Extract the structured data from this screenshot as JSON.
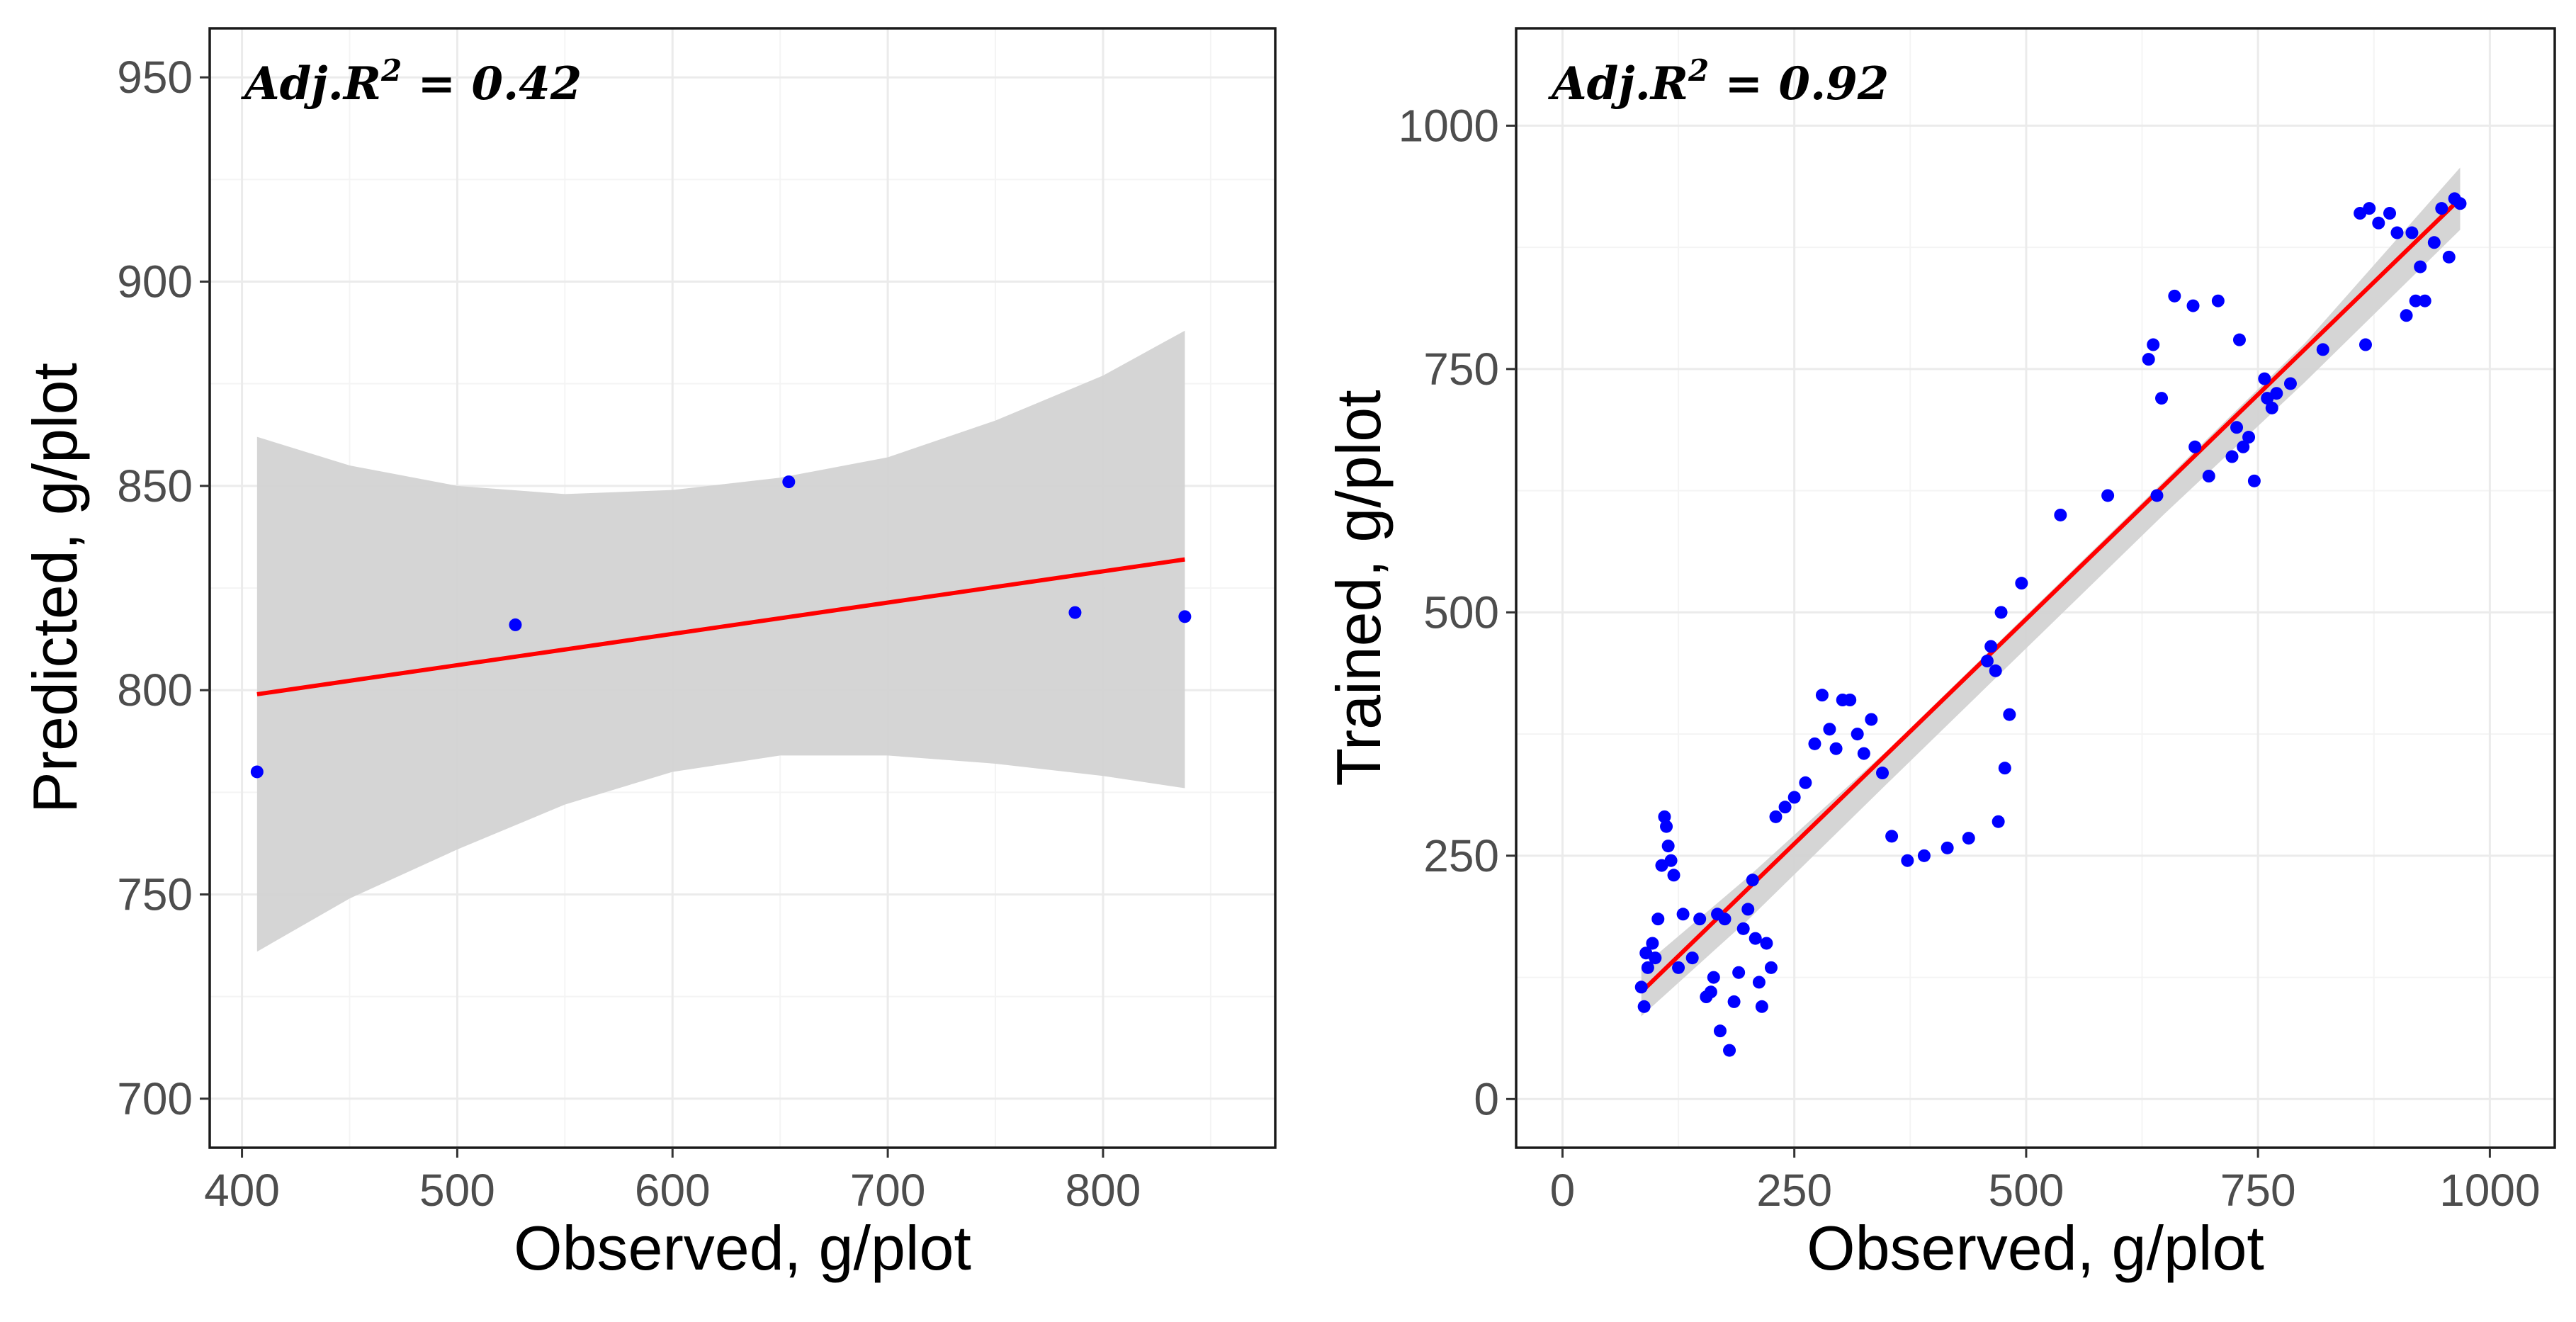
{
  "colors": {
    "points": "#0000ff",
    "fit_line": "#ff0000",
    "confidence_band": "#d3d3d3",
    "grid": "#ebebeb",
    "border": "#1a1a1a",
    "tick_text": "#4d4d4d"
  },
  "chart_data": [
    {
      "id": "left",
      "type": "scatter",
      "annotation": {
        "prefix": "Adj.",
        "r": "R",
        "sup": "2",
        "eq": " = ",
        "value": "0.42"
      },
      "xlabel": "Observed, g/plot",
      "ylabel": "Predicted, g/plot",
      "xlim": [
        385,
        880
      ],
      "ylim": [
        688,
        962
      ],
      "xticks": [
        400,
        500,
        600,
        700,
        800
      ],
      "yticks": [
        700,
        750,
        800,
        850,
        900,
        950
      ],
      "xminor": [
        450,
        550,
        650,
        750,
        850
      ],
      "yminor": [
        725,
        775,
        825,
        875,
        925
      ],
      "points": {
        "x": [
          407,
          527,
          654,
          787,
          838
        ],
        "y": [
          780,
          816,
          851,
          819,
          818
        ]
      },
      "fit": {
        "x": [
          407,
          838
        ],
        "y": [
          799,
          832
        ]
      },
      "band": {
        "x": [
          407,
          450,
          500,
          550,
          600,
          650,
          700,
          750,
          800,
          838
        ],
        "upper": [
          862,
          855,
          850,
          848,
          849,
          852,
          857,
          866,
          877,
          888
        ],
        "lower": [
          736,
          749,
          761,
          772,
          780,
          784,
          784,
          782,
          779,
          776
        ]
      }
    },
    {
      "id": "right",
      "type": "scatter",
      "annotation": {
        "prefix": "Adj.",
        "r": "R",
        "sup": "2",
        "eq": " = ",
        "value": "0.92"
      },
      "xlabel": "Observed, g/plot",
      "ylabel": "Trained, g/plot",
      "xlim": [
        -50,
        1070
      ],
      "ylim": [
        -50,
        1100
      ],
      "xticks": [
        0,
        250,
        500,
        750,
        1000
      ],
      "yticks": [
        0,
        250,
        500,
        750,
        1000
      ],
      "xminor": [
        125,
        375,
        625,
        875
      ],
      "yminor": [
        125,
        375,
        625,
        875
      ],
      "points": {
        "x": [
          85,
          88,
          90,
          92,
          97,
          100,
          103,
          107,
          110,
          112,
          114,
          117,
          120,
          125,
          130,
          140,
          148,
          155,
          160,
          163,
          167,
          170,
          175,
          180,
          185,
          190,
          195,
          200,
          205,
          208,
          212,
          215,
          220,
          225,
          230,
          240,
          250,
          262,
          272,
          280,
          288,
          295,
          302,
          310,
          318,
          325,
          333,
          345,
          355,
          372,
          390,
          415,
          438,
          458,
          462,
          467,
          470,
          473,
          477,
          482,
          495,
          537,
          588,
          632,
          637,
          641,
          646,
          660,
          680,
          682,
          697,
          707,
          722,
          727,
          730,
          734,
          740,
          746,
          757,
          760,
          765,
          770,
          785,
          820,
          860,
          866,
          870,
          880,
          892,
          900,
          910,
          916,
          920,
          925,
          930,
          940,
          948,
          956,
          962,
          968
        ],
        "y": [
          115,
          95,
          150,
          135,
          160,
          145,
          185,
          240,
          290,
          280,
          260,
          245,
          230,
          135,
          190,
          145,
          185,
          105,
          110,
          125,
          190,
          70,
          185,
          50,
          100,
          130,
          175,
          195,
          225,
          165,
          120,
          95,
          160,
          135,
          290,
          300,
          310,
          325,
          365,
          415,
          380,
          360,
          410,
          410,
          375,
          355,
          390,
          335,
          270,
          245,
          250,
          258,
          268,
          450,
          465,
          440,
          285,
          500,
          340,
          395,
          530,
          600,
          620,
          760,
          775,
          620,
          720,
          825,
          815,
          670,
          640,
          820,
          660,
          690,
          780,
          670,
          680,
          635,
          740,
          720,
          710,
          725,
          735,
          770,
          910,
          775,
          915,
          900,
          910,
          890,
          805,
          890,
          820,
          855,
          820,
          880,
          915,
          865,
          925,
          920
        ]
      },
      "fit": {
        "x": [
          85,
          968
        ],
        "y": [
          110,
          925
        ]
      },
      "band": {
        "x": [
          85,
          200,
          350,
          500,
          650,
          800,
          968
        ],
        "upper": [
          135,
          228,
          358,
          497,
          636,
          776,
          957
        ],
        "lower": [
          85,
          184,
          324,
          463,
          602,
          736,
          893
        ]
      }
    }
  ]
}
